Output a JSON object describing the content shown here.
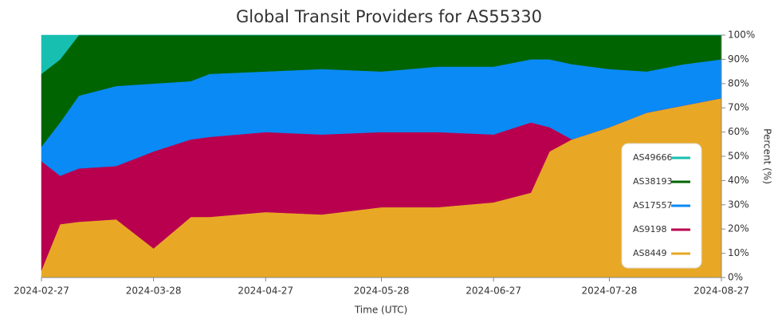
{
  "chart_data": {
    "type": "stacked_area",
    "title": "Global Transit Providers for AS55330",
    "x_label": "Time (UTC)",
    "y_label": "Percent (%)",
    "x": [
      "2024-02-27",
      "2024-03-03",
      "2024-03-08",
      "2024-03-18",
      "2024-03-28",
      "2024-04-07",
      "2024-04-12",
      "2024-04-27",
      "2024-05-12",
      "2024-05-28",
      "2024-06-12",
      "2024-06-27",
      "2024-07-07",
      "2024-07-12",
      "2024-07-18",
      "2024-07-28",
      "2024-08-07",
      "2024-08-17",
      "2024-08-27"
    ],
    "series": [
      {
        "name": "AS8449",
        "color": "#e8a825",
        "values": [
          3,
          22,
          23,
          24,
          12,
          25,
          25,
          27,
          26,
          29,
          29,
          31,
          35,
          52,
          57,
          62,
          68,
          71,
          74
        ]
      },
      {
        "name": "AS9198",
        "color": "#b8004f",
        "values": [
          45,
          20,
          22,
          22,
          40,
          32,
          33,
          33,
          33,
          31,
          31,
          28,
          29,
          10,
          0,
          0,
          0,
          0,
          0
        ]
      },
      {
        "name": "AS17557",
        "color": "#0a8af5",
        "values": [
          6,
          22,
          30,
          33,
          28,
          24,
          26,
          25,
          27,
          25,
          27,
          28,
          26,
          28,
          31,
          24,
          17,
          17,
          16
        ]
      },
      {
        "name": "AS38193",
        "color": "#006400",
        "values": [
          30,
          26,
          25,
          21,
          20,
          19,
          16,
          15,
          14,
          15,
          13,
          13,
          10,
          10,
          12,
          14,
          15,
          12,
          10
        ]
      },
      {
        "name": "AS49666",
        "color": "#17bfb0",
        "values": [
          16,
          10,
          0,
          0,
          0,
          0,
          0,
          0,
          0,
          0,
          0,
          0,
          0,
          0,
          0,
          0,
          0,
          0,
          0
        ]
      }
    ],
    "xlim": [
      "2024-02-27",
      "2024-08-27"
    ],
    "xticks": [
      "2024-02-27",
      "2024-03-28",
      "2024-04-27",
      "2024-05-28",
      "2024-06-27",
      "2024-07-28",
      "2024-08-27"
    ],
    "ylim": [
      0,
      100
    ],
    "yticks": [
      {
        "value": 0,
        "label": "0%"
      },
      {
        "value": 10,
        "label": "10%"
      },
      {
        "value": 20,
        "label": "20%"
      },
      {
        "value": 30,
        "label": "30%"
      },
      {
        "value": 40,
        "label": "40%"
      },
      {
        "value": 50,
        "label": "50%"
      },
      {
        "value": 60,
        "label": "60%"
      },
      {
        "value": 70,
        "label": "70%"
      },
      {
        "value": 80,
        "label": "80%"
      },
      {
        "value": 90,
        "label": "90%"
      },
      {
        "value": 100,
        "label": "100%"
      }
    ],
    "legend": "right"
  }
}
